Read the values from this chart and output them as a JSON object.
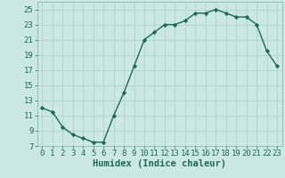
{
  "x": [
    0,
    1,
    2,
    3,
    4,
    5,
    6,
    7,
    8,
    9,
    10,
    11,
    12,
    13,
    14,
    15,
    16,
    17,
    18,
    19,
    20,
    21,
    22,
    23
  ],
  "y": [
    12.0,
    11.5,
    9.5,
    8.5,
    8.0,
    7.5,
    7.5,
    11.0,
    14.0,
    17.5,
    21.0,
    22.0,
    23.0,
    23.0,
    23.5,
    24.5,
    24.5,
    25.0,
    24.5,
    24.0,
    24.0,
    23.0,
    19.5,
    17.5
  ],
  "line_color": "#1a6b5a",
  "marker": "D",
  "marker_size": 2.2,
  "bg_color": "#cce8e4",
  "grid_color": "#aacfcb",
  "title": "",
  "xlabel": "Humidex (Indice chaleur)",
  "ylabel": "",
  "xlim": [
    -0.5,
    23.5
  ],
  "ylim": [
    7,
    26
  ],
  "yticks": [
    7,
    9,
    11,
    13,
    15,
    17,
    19,
    21,
    23,
    25
  ],
  "xticks": [
    0,
    1,
    2,
    3,
    4,
    5,
    6,
    7,
    8,
    9,
    10,
    11,
    12,
    13,
    14,
    15,
    16,
    17,
    18,
    19,
    20,
    21,
    22,
    23
  ],
  "xlabel_fontsize": 7.5,
  "tick_fontsize": 6.5,
  "tick_color": "#1a6b5a",
  "line_width": 1.0,
  "spine_color": "#7ab0aa"
}
